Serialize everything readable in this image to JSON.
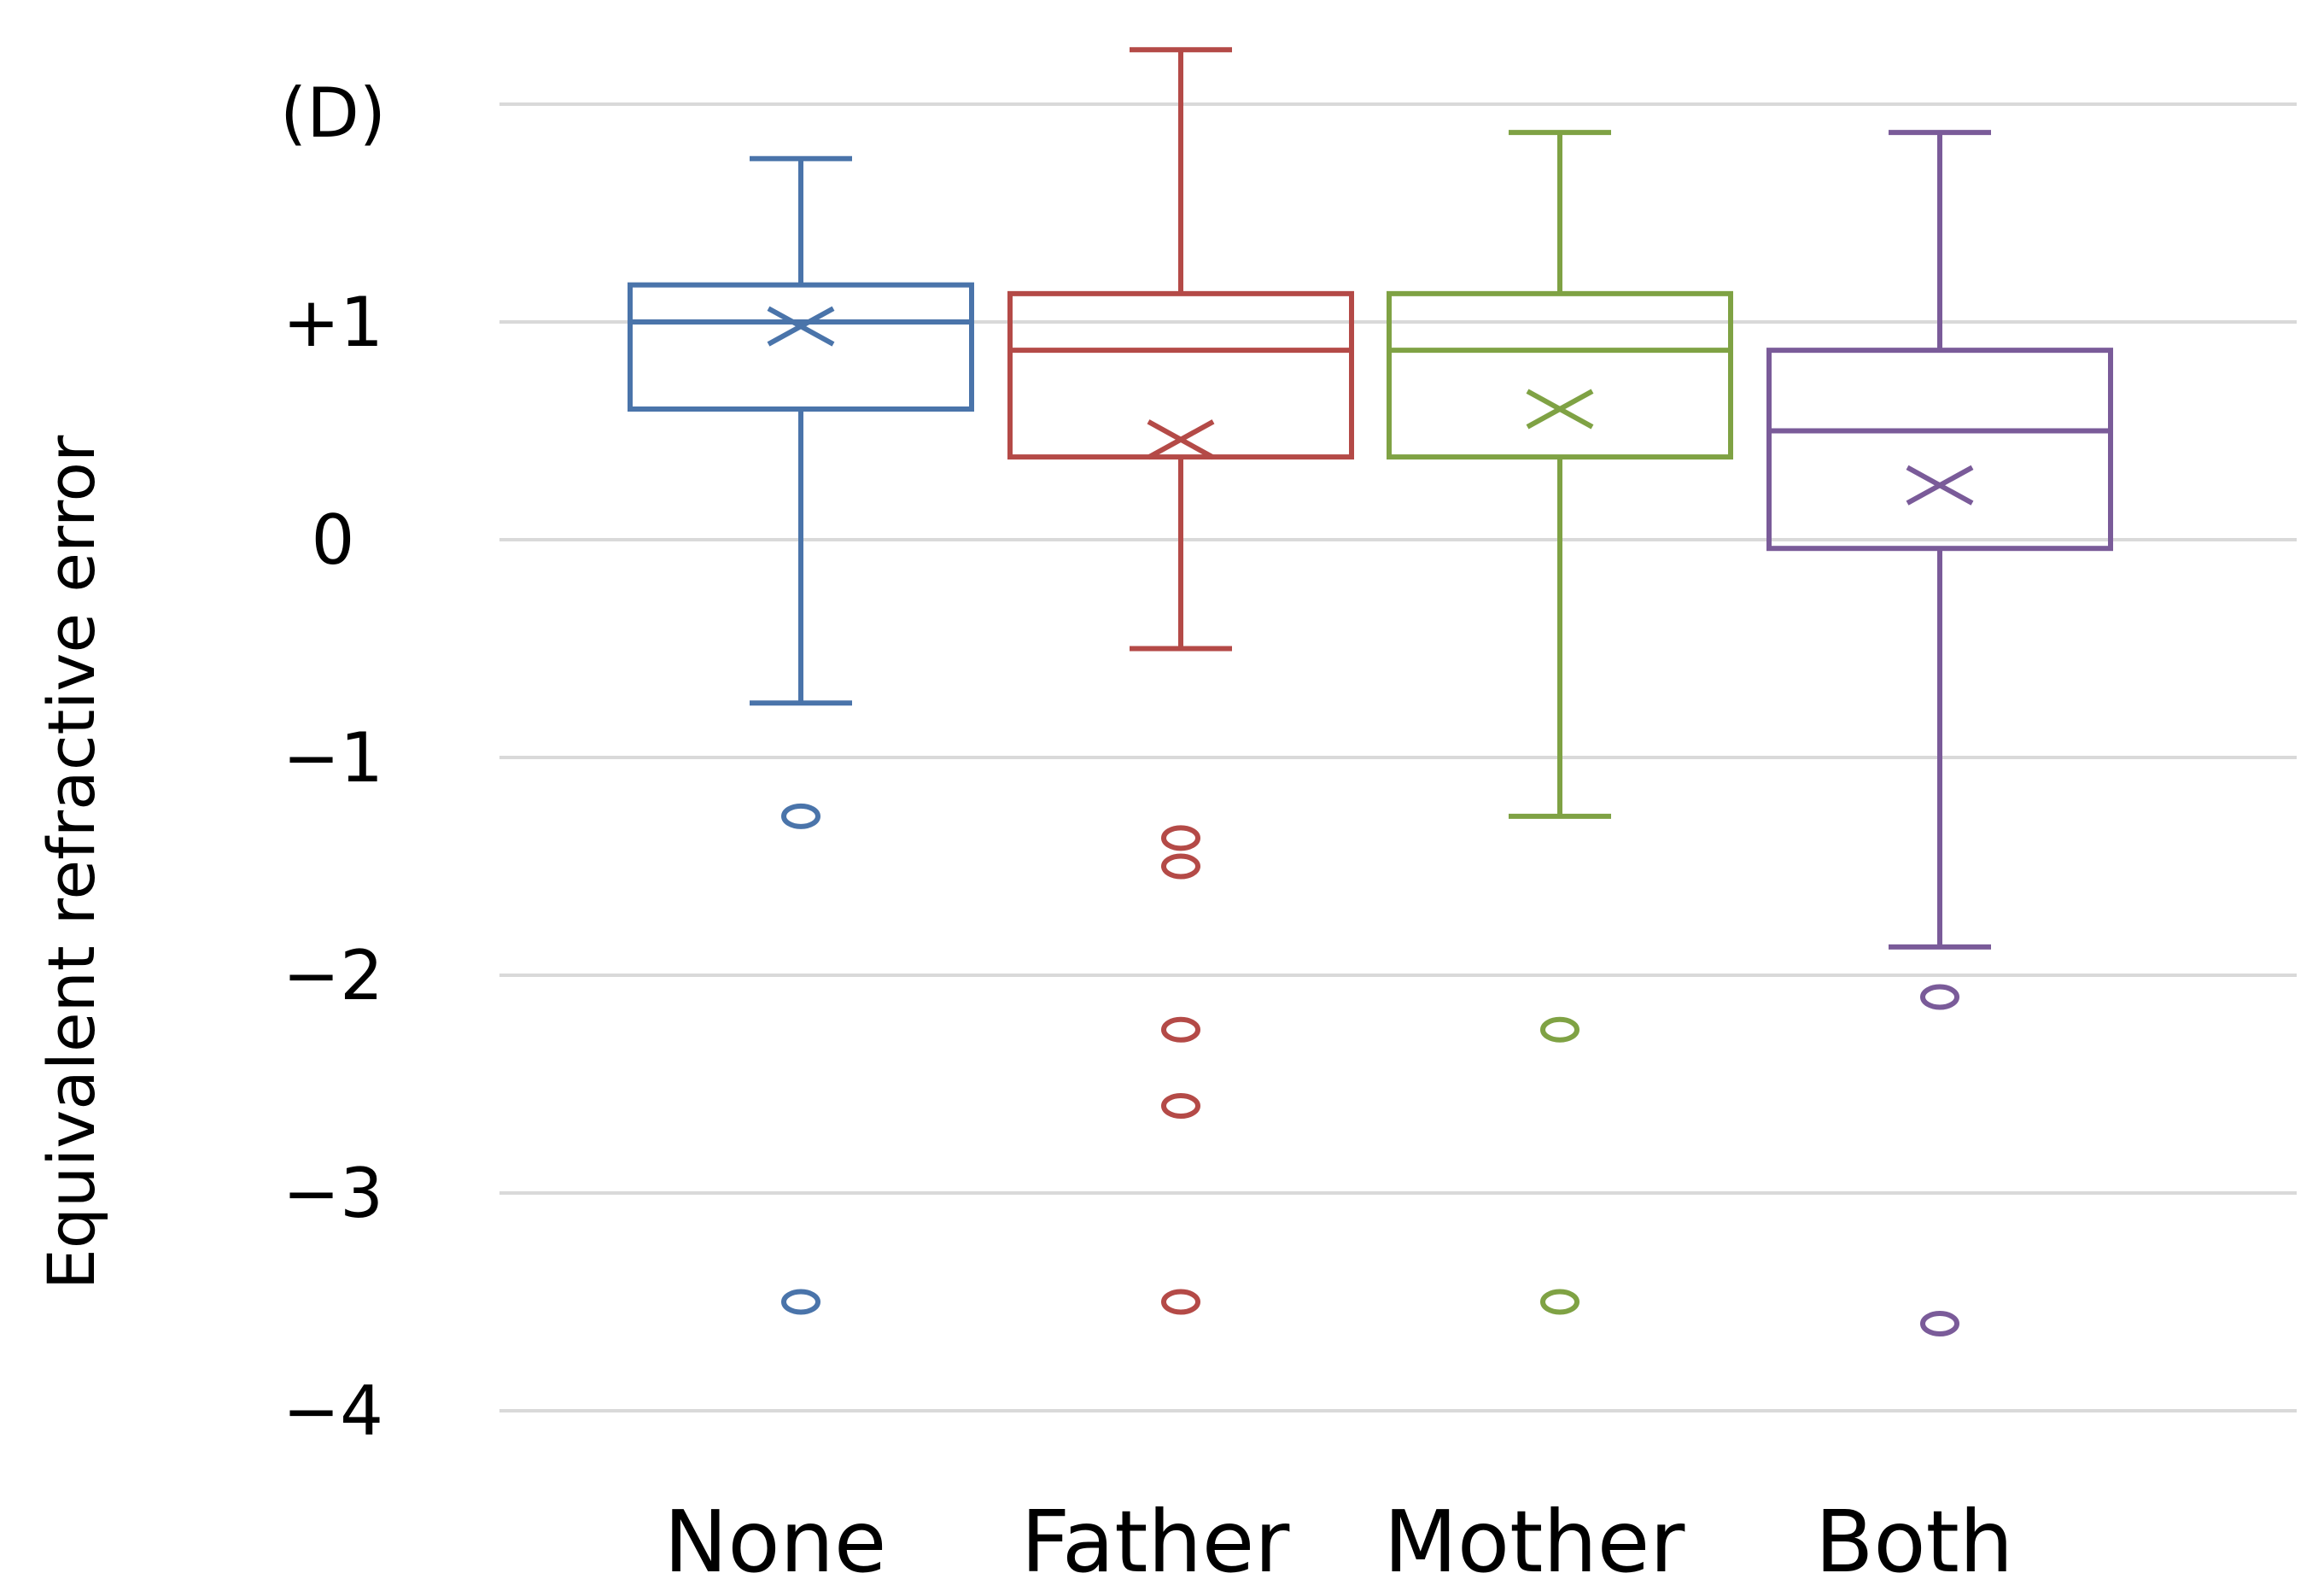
{
  "chart_data": {
    "type": "boxplot",
    "title": "",
    "xlabel": "",
    "ylabel": "Equivalent refractive error",
    "unit_label": "(D)",
    "ylim": [
      -4,
      2
    ],
    "yticks": [
      {
        "value": 1,
        "label": "+1"
      },
      {
        "value": 0,
        "label": "0"
      },
      {
        "value": -1,
        "label": "−1"
      },
      {
        "value": -2,
        "label": "−2"
      },
      {
        "value": -3,
        "label": "−3"
      },
      {
        "value": -4,
        "label": "−4"
      }
    ],
    "gridlines": [
      2,
      1,
      0,
      -1,
      -2,
      -3,
      -4
    ],
    "categories": [
      "None",
      "Father",
      "Mother",
      "Both"
    ],
    "series": [
      {
        "name": "None",
        "color": "#4a74aa",
        "whisker_low": -0.75,
        "q1": 0.6,
        "median": 1.0,
        "q3": 1.17,
        "whisker_high": 1.75,
        "mean": 0.98,
        "outliers": [
          -1.27,
          -3.5
        ]
      },
      {
        "name": "Father",
        "color": "#b44a47",
        "whisker_low": -0.5,
        "q1": 0.38,
        "median": 0.87,
        "q3": 1.13,
        "whisker_high": 2.25,
        "mean": 0.46,
        "outliers": [
          -1.37,
          -1.5,
          -2.25,
          -2.6,
          -3.5
        ]
      },
      {
        "name": "Mother",
        "color": "#7fa244",
        "whisker_low": -1.27,
        "q1": 0.38,
        "median": 0.87,
        "q3": 1.13,
        "whisker_high": 1.87,
        "mean": 0.6,
        "outliers": [
          -2.25,
          -3.5
        ]
      },
      {
        "name": "Both",
        "color": "#7a5b99",
        "whisker_low": -1.87,
        "q1": -0.04,
        "median": 0.5,
        "q3": 0.87,
        "whisker_high": 1.87,
        "mean": 0.25,
        "outliers": [
          -2.1,
          -3.6
        ]
      }
    ]
  }
}
